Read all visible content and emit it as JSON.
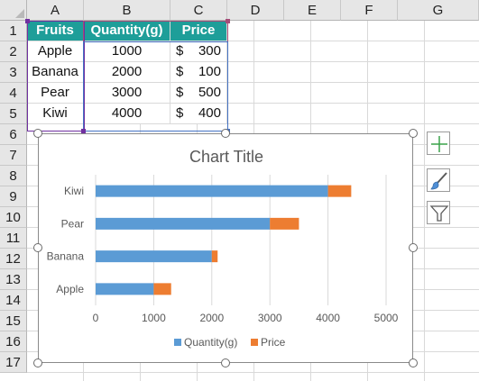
{
  "columns": [
    "A",
    "B",
    "C",
    "D",
    "E",
    "F",
    "G"
  ],
  "rows": [
    "1",
    "2",
    "3",
    "4",
    "5",
    "6",
    "7",
    "8",
    "9",
    "10",
    "11",
    "12",
    "13",
    "14",
    "15",
    "16",
    "17"
  ],
  "table": {
    "headers": [
      "Fruits",
      "Quantity(g)",
      "Price"
    ],
    "currency_symbol": "$",
    "rows": [
      {
        "fruit": "Apple",
        "quantity": "1000",
        "price": "300"
      },
      {
        "fruit": "Banana",
        "quantity": "2000",
        "price": "100"
      },
      {
        "fruit": "Pear",
        "quantity": "3000",
        "price": "500"
      },
      {
        "fruit": "Kiwi",
        "quantity": "4000",
        "price": "400"
      }
    ],
    "header_color": "#1e9e99"
  },
  "chart_data": {
    "type": "bar",
    "orientation": "horizontal",
    "stacked": true,
    "title": "Chart Title",
    "categories": [
      "Apple",
      "Banana",
      "Pear",
      "Kiwi"
    ],
    "series": [
      {
        "name": "Quantity(g)",
        "values": [
          1000,
          2000,
          3000,
          4000
        ],
        "color": "#5b9bd5"
      },
      {
        "name": "Price",
        "values": [
          300,
          100,
          500,
          400
        ],
        "color": "#ed7d31"
      }
    ],
    "xlim": [
      0,
      5000
    ],
    "xticks": [
      "0",
      "1000",
      "2000",
      "3000",
      "4000",
      "5000"
    ],
    "grid": true,
    "legend": "bottom"
  },
  "chart_tools": [
    "chart-elements",
    "chart-styles",
    "chart-filters"
  ]
}
